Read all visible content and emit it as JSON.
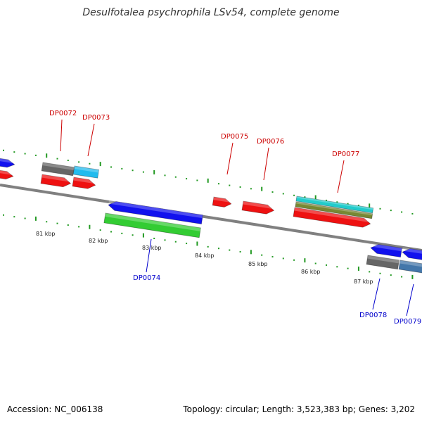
{
  "title": "Desulfotalea psychrophila LSv54, complete genome",
  "footer": {
    "accession": "Accession: NC_006138",
    "stats": "Topology: circular; Length: 3,523,383 bp; Genes: 3,202"
  },
  "colors": {
    "backbone": "#808080",
    "tick": "#229922",
    "top_label": "#cc0000",
    "bottom_label": "#0000cc",
    "red": "#ee1111",
    "blue": "#1111ee",
    "grey": "#666666",
    "cyan": "#22bbee",
    "green": "#33cc33",
    "olive": "#778833",
    "teal": "#22cccc",
    "steel": "#4477aa"
  },
  "scale_labels": [
    "81 kbp",
    "82 kbp",
    "83 kbp",
    "84 kbp",
    "85 kbp",
    "86 kbp",
    "87 kbp"
  ],
  "gene_labels_top": [
    "DP0072",
    "DP0073",
    "DP0075",
    "DP0076",
    "DP0077"
  ],
  "gene_labels_bottom": [
    "DP0074",
    "DP0078",
    "DP0079"
  ]
}
